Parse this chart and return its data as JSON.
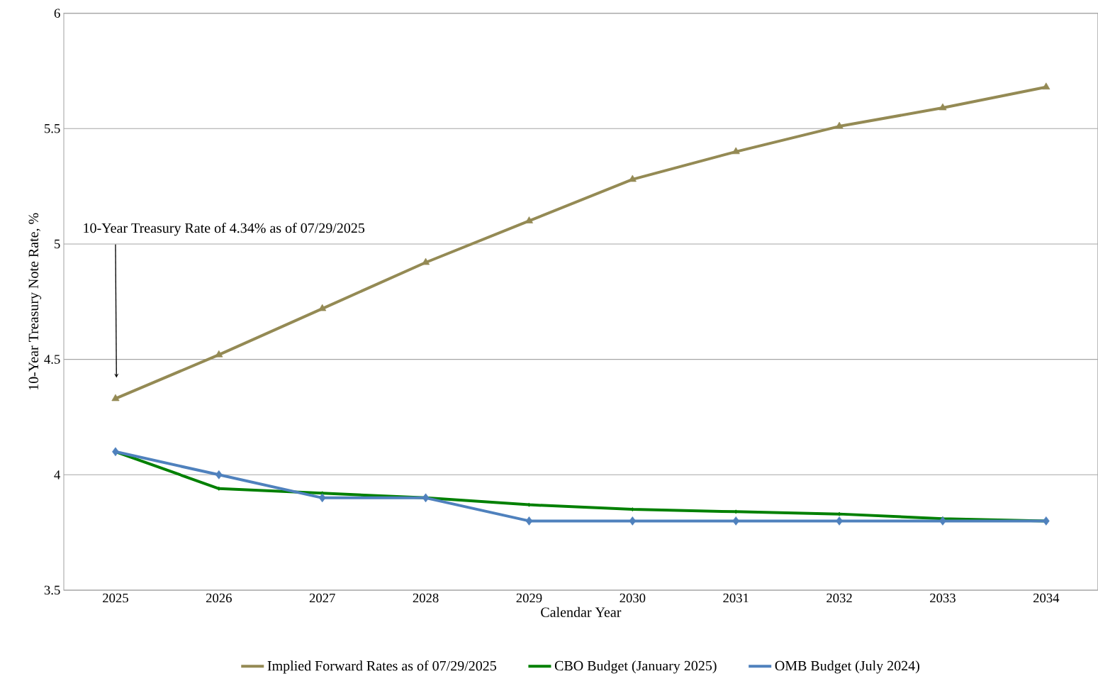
{
  "chart_data": {
    "type": "line",
    "xlabel": "Calendar Year",
    "ylabel": "10-Year Treasury  Note Rate, %",
    "categories": [
      "2025",
      "2026",
      "2027",
      "2028",
      "2029",
      "2030",
      "2031",
      "2032",
      "2033",
      "2034"
    ],
    "series": [
      {
        "name": "Implied Forward Rates as of 07/29/2025",
        "color": "#948a54",
        "marker": "triangle",
        "values": [
          4.33,
          4.52,
          4.72,
          4.92,
          5.1,
          5.28,
          5.4,
          5.51,
          5.59,
          5.68
        ]
      },
      {
        "name": "CBO Budget (January 2025)",
        "color": "#008000",
        "marker": "diamond",
        "values": [
          4.1,
          3.94,
          3.92,
          3.9,
          3.87,
          3.85,
          3.84,
          3.83,
          3.81,
          3.8
        ]
      },
      {
        "name": "OMB Budget (July 2024)",
        "color": "#4f81bd",
        "marker": "diamond",
        "values": [
          4.1,
          4.0,
          3.9,
          3.9,
          3.8,
          3.8,
          3.8,
          3.8,
          3.8,
          3.8
        ]
      }
    ],
    "ylim": [
      3.5,
      6
    ],
    "yticks": [
      3.5,
      4,
      4.5,
      5,
      5.5,
      6
    ],
    "grid": "y",
    "legend": "bottom",
    "line_style": "solid",
    "annotations": [
      "10-Year Treasury  Rate of 4.34% as of 07/29/2025"
    ]
  }
}
